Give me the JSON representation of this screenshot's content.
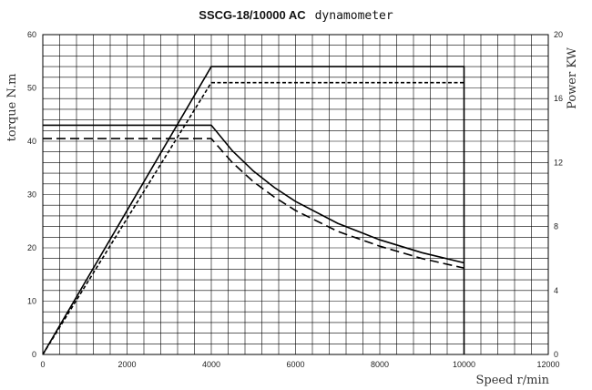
{
  "chart_data": {
    "type": "line",
    "title_bold": "SSCG-18/10000 AC",
    "title_rest": "dynamometer",
    "xlabel": "Speed r/min",
    "ylabel_left": "torque N.m",
    "ylabel_right": "Power KW",
    "xlim": [
      0,
      12000
    ],
    "ylim_left": [
      0,
      60
    ],
    "ylim_right": [
      0,
      20
    ],
    "x_ticks": [
      0,
      2000,
      4000,
      6000,
      8000,
      10000,
      12000
    ],
    "y_left_ticks": [
      0,
      10,
      20,
      30,
      40,
      50,
      60
    ],
    "y_right_ticks": [
      0,
      4,
      8,
      12,
      16,
      20
    ],
    "grid": true,
    "series": [
      {
        "axis": "right",
        "style": "solid",
        "x": [
          0,
          4000,
          10000,
          10000
        ],
        "y": [
          0,
          18,
          18,
          0
        ]
      },
      {
        "axis": "right",
        "style": "short-dash",
        "x": [
          0,
          4000,
          10000
        ],
        "y": [
          0,
          17,
          17
        ]
      },
      {
        "axis": "left",
        "style": "solid",
        "x": [
          0,
          4000,
          4500,
          5000,
          5500,
          6000,
          7000,
          8000,
          9000,
          10000
        ],
        "y": [
          43,
          43,
          38.2,
          34.4,
          31.3,
          28.7,
          24.6,
          21.5,
          19.1,
          17.2
        ]
      },
      {
        "axis": "left",
        "style": "long-dash",
        "x": [
          0,
          4000,
          4500,
          5000,
          5500,
          6000,
          7000,
          8000,
          9000,
          10000
        ],
        "y": [
          40.5,
          40.5,
          36,
          32.4,
          29.5,
          27,
          23.1,
          20.3,
          18,
          16.2
        ]
      }
    ]
  }
}
